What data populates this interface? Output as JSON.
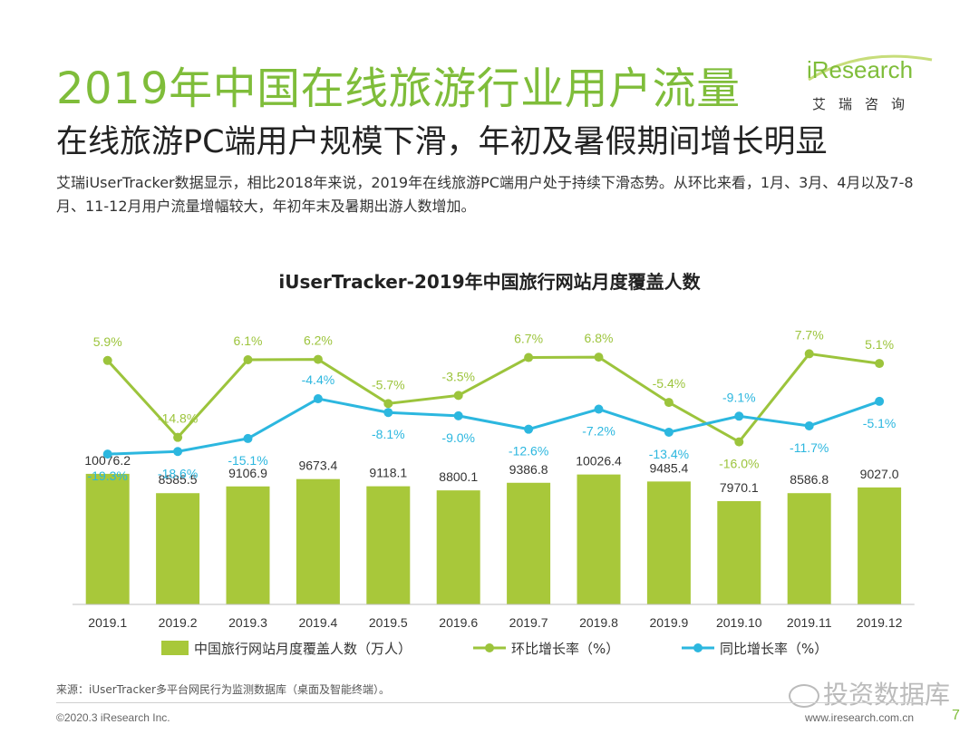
{
  "header": {
    "title": "2019年中国在线旅游行业用户流量",
    "subtitle": "在线旅游PC端用户规模下滑，年初及暑假期间增长明显",
    "description": "艾瑞iUserTracker数据显示，相比2018年来说，2019年在线旅游PC端用户处于持续下滑态势。从环比来看，1月、3月、4月以及7-8月、11-12月用户流量增幅较大，年初年末及暑期出游人数增加。"
  },
  "logo": {
    "text": "iResearch",
    "cn": "艾瑞咨询"
  },
  "colors": {
    "green": "#a8c83a",
    "green_line": "#9cc43c",
    "blue": "#2cb7df",
    "title_green": "#7fbd3a"
  },
  "chart_data": {
    "type": "bar",
    "title": "iUserTracker-2019年中国旅行网站月度覆盖人数",
    "categories": [
      "2019.1",
      "2019.2",
      "2019.3",
      "2019.4",
      "2019.5",
      "2019.6",
      "2019.7",
      "2019.8",
      "2019.9",
      "2019.10",
      "2019.11",
      "2019.12"
    ],
    "series": [
      {
        "name": "中国旅行网站月度覆盖人数（万人）",
        "type": "bar",
        "values": [
          10076.2,
          8585.5,
          9106.9,
          9673.4,
          9118.1,
          8800.1,
          9386.8,
          10026.4,
          9485.4,
          7970.1,
          8586.8,
          9027.0
        ],
        "labels": [
          "10076.2",
          "8585.5",
          "9106.9",
          "9673.4",
          "9118.1",
          "8800.1",
          "9386.8",
          "10026.4",
          "9485.4",
          "7970.1",
          "8586.8",
          "9027.0"
        ]
      },
      {
        "name": "环比增长率（%）",
        "type": "line",
        "values": [
          5.9,
          -14.8,
          6.1,
          6.2,
          -5.7,
          -3.5,
          6.7,
          6.8,
          -5.4,
          -16.0,
          7.7,
          5.1
        ],
        "labels": [
          "5.9%",
          "-14.8%",
          "6.1%",
          "6.2%",
          "-5.7%",
          "-3.5%",
          "6.7%",
          "6.8%",
          "-5.4%",
          "-16.0%",
          "7.7%",
          "5.1%"
        ]
      },
      {
        "name": "同比增长率（%）",
        "type": "line",
        "values": [
          -19.3,
          -18.6,
          -15.1,
          -4.4,
          -8.1,
          -9.0,
          -12.6,
          -7.2,
          -13.4,
          -9.1,
          -11.7,
          -5.1
        ],
        "labels": [
          "-19.3%",
          "-18.6%",
          "-15.1%",
          "-4.4%",
          "-8.1%",
          "-9.0%",
          "-12.6%",
          "-7.2%",
          "-13.4%",
          "-9.1%",
          "-11.7%",
          "-5.1%"
        ]
      }
    ],
    "legend_position": "bottom",
    "grid": false
  },
  "footer": {
    "source": "来源：iUserTracker多平台网民行为监测数据库（桌面及智能终端）。",
    "copyright": "©2020.3 iResearch Inc.",
    "site": "www.iresearch.com.cn",
    "page": "7",
    "watermark": "投资数据库"
  }
}
